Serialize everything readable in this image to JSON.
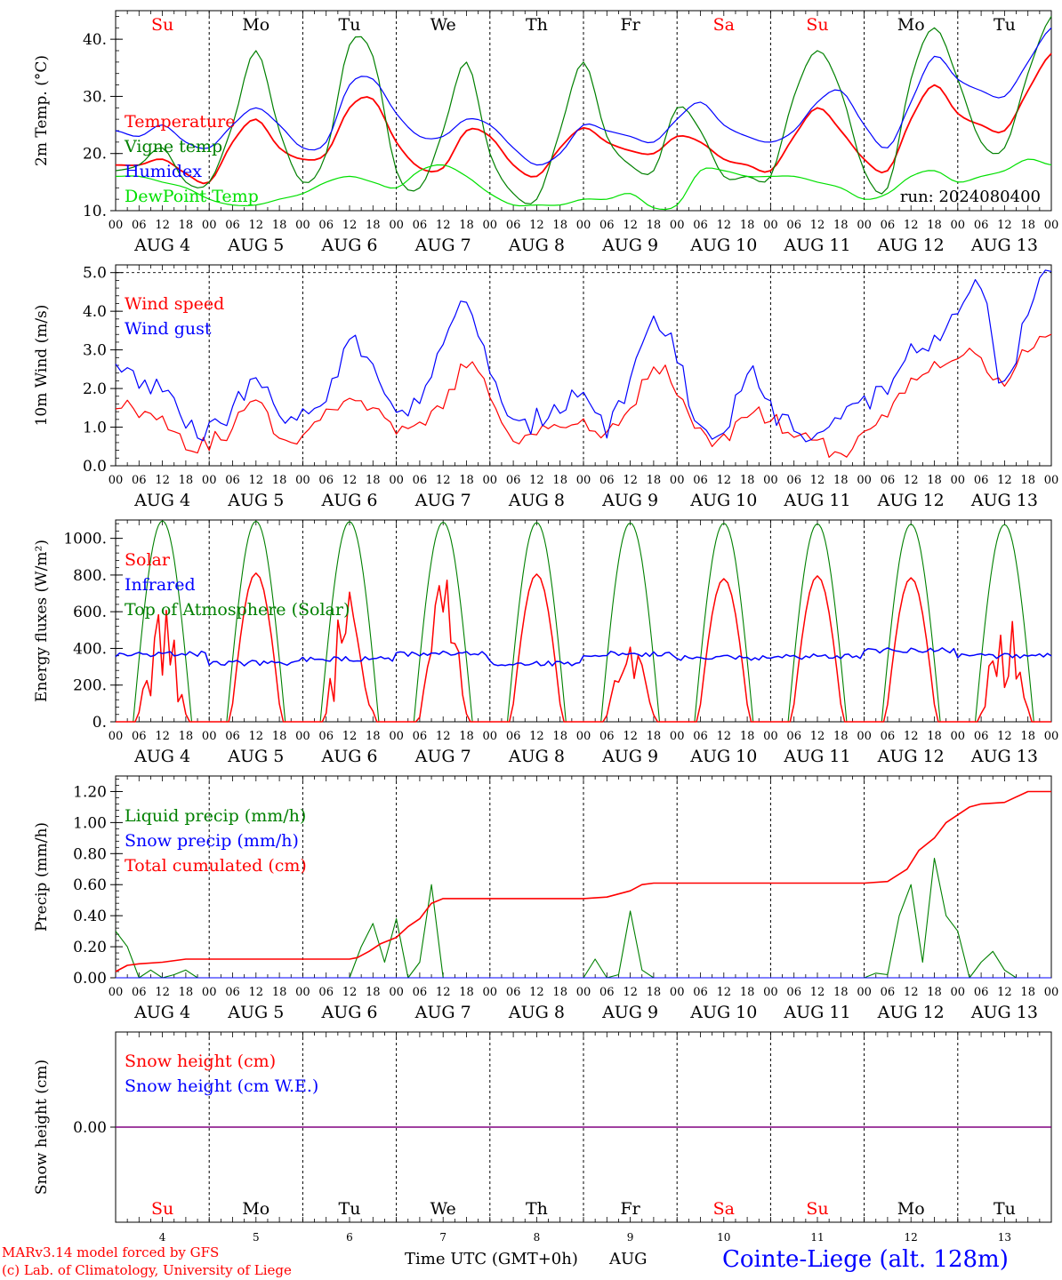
{
  "colors": {
    "red": "#ff0000",
    "green": "#008000",
    "blue": "#0000ff",
    "lightgreen": "#00e000",
    "purple": "#800080",
    "axis": "#000000"
  },
  "days": {
    "weekdays": [
      "Su",
      "Mo",
      "Tu",
      "We",
      "Th",
      "Fr",
      "Sa",
      "Su",
      "Mo",
      "Tu"
    ],
    "weekday_colors": [
      "red",
      "black",
      "black",
      "black",
      "black",
      "black",
      "red",
      "red",
      "black",
      "black"
    ],
    "date_labels": [
      "AUG  4",
      "AUG  5",
      "AUG  6",
      "AUG  7",
      "AUG  8",
      "AUG  9",
      "AUG 10",
      "AUG 11",
      "AUG 12",
      "AUG 13"
    ],
    "hour_ticks": [
      "00",
      "06",
      "12",
      "18"
    ],
    "hour_end": "00",
    "bottom_day_numbers": [
      "4",
      "5",
      "6",
      "7",
      "8",
      "9",
      "10",
      "11",
      "12",
      "13"
    ]
  },
  "chart_data": [
    {
      "id": "temperature",
      "type": "line",
      "ylabel": "2m Temp. (°C)",
      "ylim": [
        10,
        45
      ],
      "yticks": [
        10,
        20,
        30,
        40
      ],
      "ytick_labels": [
        "10.",
        "20.",
        "30.",
        "40."
      ],
      "annotation": "run: 2024080400",
      "x_unit": "hours since AUG 4 00 UTC",
      "series": [
        {
          "name": "Temperature",
          "color": "red",
          "x": [
            0,
            6,
            12,
            18,
            24,
            30,
            36,
            42,
            48,
            54,
            60,
            66,
            72,
            78,
            84,
            90,
            96,
            102,
            108,
            114,
            120,
            126,
            132,
            138,
            144,
            150,
            156,
            162,
            168,
            174,
            180,
            186,
            192,
            198,
            204,
            210,
            216,
            222,
            228,
            234,
            240
          ],
          "values": [
            18,
            18,
            19,
            16.5,
            15,
            22,
            26,
            21,
            19,
            20,
            28,
            29.5,
            22,
            17.5,
            17.5,
            24,
            23,
            18,
            16,
            21,
            24.5,
            22,
            20.5,
            20,
            23,
            22,
            19,
            18,
            17,
            23,
            28,
            24,
            19,
            17,
            26,
            32,
            27,
            25,
            24,
            31,
            37.5
          ]
        },
        {
          "name": "Vigne temp",
          "color": "green",
          "x": [
            0,
            6,
            12,
            18,
            24,
            30,
            36,
            42,
            48,
            54,
            60,
            66,
            72,
            78,
            84,
            90,
            96,
            102,
            108,
            114,
            120,
            126,
            132,
            138,
            144,
            150,
            156,
            162,
            168,
            174,
            180,
            186,
            192,
            198,
            204,
            210,
            216,
            222,
            228,
            234,
            240
          ],
          "values": [
            17,
            18,
            21,
            15,
            15,
            25,
            38,
            24,
            15,
            20,
            39,
            37,
            17,
            14,
            24,
            36,
            20,
            13,
            12,
            24,
            36,
            23,
            18,
            17,
            28,
            24,
            16,
            16,
            16,
            30,
            38,
            31,
            17,
            14,
            33,
            42,
            33,
            22,
            21,
            34,
            44
          ]
        },
        {
          "name": "Humidex",
          "color": "blue",
          "x": [
            0,
            6,
            12,
            18,
            24,
            30,
            36,
            42,
            48,
            54,
            60,
            66,
            72,
            78,
            84,
            90,
            96,
            102,
            108,
            114,
            120,
            126,
            132,
            138,
            144,
            150,
            156,
            162,
            168,
            174,
            180,
            186,
            192,
            198,
            204,
            210,
            216,
            222,
            228,
            234,
            240
          ],
          "values": [
            24,
            23,
            25,
            22,
            21,
            25,
            28,
            25,
            21,
            22,
            32,
            33,
            27,
            23,
            23,
            26,
            25,
            21,
            18,
            20,
            25,
            24,
            23,
            22,
            26,
            29,
            25,
            23,
            22,
            24,
            29,
            31,
            25,
            21,
            29,
            37,
            33,
            31,
            30,
            36,
            42
          ]
        },
        {
          "name": "DewPoint Temp",
          "color": "lightgreen",
          "x": [
            0,
            6,
            12,
            18,
            24,
            30,
            36,
            42,
            48,
            54,
            60,
            66,
            72,
            78,
            84,
            90,
            96,
            102,
            108,
            114,
            120,
            126,
            132,
            138,
            144,
            150,
            156,
            162,
            168,
            174,
            180,
            186,
            192,
            198,
            204,
            210,
            216,
            222,
            228,
            234,
            240
          ],
          "values": [
            16,
            16,
            15,
            14,
            12,
            11,
            11,
            12,
            13,
            15,
            16,
            15,
            14,
            17,
            18,
            16,
            13,
            11,
            11,
            11,
            12,
            12,
            13,
            10.5,
            11,
            17,
            17,
            16,
            16,
            16,
            15,
            14,
            12,
            13,
            16,
            17,
            15,
            16,
            17,
            19,
            18
          ]
        }
      ]
    },
    {
      "id": "wind",
      "type": "line",
      "ylabel": "10m Wind (m/s)",
      "ylim": [
        0,
        5.2
      ],
      "yticks": [
        0,
        1,
        2,
        3,
        4,
        5
      ],
      "ytick_labels": [
        "0.0",
        "1.0",
        "2.0",
        "3.0",
        "4.0",
        "5.0"
      ],
      "series": [
        {
          "name": "Wind speed",
          "color": "red",
          "x": [
            0,
            6,
            12,
            18,
            24,
            30,
            36,
            42,
            48,
            54,
            60,
            66,
            72,
            78,
            84,
            90,
            96,
            102,
            108,
            114,
            120,
            126,
            132,
            138,
            144,
            150,
            156,
            162,
            168,
            174,
            180,
            186,
            192,
            198,
            204,
            210,
            216,
            222,
            228,
            234,
            240
          ],
          "values": [
            1.7,
            1.4,
            1.3,
            0.6,
            0.6,
            1.0,
            1.7,
            0.8,
            0.8,
            1.4,
            1.8,
            1.4,
            0.9,
            1.0,
            1.6,
            2.6,
            1.8,
            0.6,
            0.9,
            1.2,
            1.0,
            0.8,
            1.5,
            2.6,
            2.0,
            0.8,
            0.7,
            1.4,
            1.2,
            0.8,
            0.6,
            0.3,
            1.0,
            1.3,
            2.2,
            2.6,
            2.9,
            2.8,
            2.0,
            3.1,
            3.2
          ]
        },
        {
          "name": "Wind gust",
          "color": "blue",
          "x": [
            0,
            6,
            12,
            18,
            24,
            30,
            36,
            42,
            48,
            54,
            60,
            66,
            72,
            78,
            84,
            90,
            96,
            102,
            108,
            114,
            120,
            126,
            132,
            138,
            144,
            150,
            156,
            162,
            168,
            174,
            180,
            186,
            192,
            198,
            204,
            210,
            216,
            222,
            228,
            234,
            240
          ],
          "values": [
            2.5,
            2.2,
            2.0,
            1.0,
            0.9,
            1.4,
            2.3,
            1.3,
            1.2,
            1.8,
            3.2,
            2.4,
            1.6,
            1.8,
            3.0,
            4.2,
            2.4,
            1.0,
            1.2,
            1.6,
            1.9,
            1.0,
            2.1,
            3.7,
            2.8,
            1.0,
            1.0,
            2.4,
            1.5,
            1.0,
            0.8,
            1.5,
            1.6,
            2.0,
            2.9,
            3.2,
            4.0,
            4.5,
            2.0,
            4.2,
            5.0
          ]
        }
      ]
    },
    {
      "id": "energy",
      "type": "line",
      "ylabel": "Energy fluxes (W/m²)",
      "ylim": [
        0,
        1100
      ],
      "yticks": [
        0,
        200,
        400,
        600,
        800,
        1000
      ],
      "ytick_labels": [
        "0.",
        "200.",
        "400.",
        "600.",
        "800.",
        "1000."
      ],
      "series": [
        {
          "name": "Solar",
          "color": "red",
          "daily_peak": [
            650,
            810,
            760,
            800,
            805,
            420,
            780,
            795,
            785,
            640
          ]
        },
        {
          "name": "Infrared",
          "color": "blue",
          "daily_mean": [
            370,
            320,
            340,
            370,
            320,
            370,
            350,
            355,
            390,
            360
          ]
        },
        {
          "name": "Top of Atmosphere (Solar)",
          "color": "green",
          "daily_peak": [
            1095,
            1093,
            1091,
            1088,
            1086,
            1084,
            1082,
            1079,
            1077,
            1075
          ]
        }
      ]
    },
    {
      "id": "precip",
      "type": "line",
      "ylabel": "Precip (mm/h)",
      "ylim": [
        0,
        1.3
      ],
      "yticks": [
        0,
        0.2,
        0.4,
        0.6,
        0.8,
        1.0,
        1.2
      ],
      "ytick_labels": [
        "0.00",
        "0.20",
        "0.40",
        "0.60",
        "0.80",
        "1.00",
        "1.20"
      ],
      "series": [
        {
          "name": "Liquid precip (mm/h)",
          "color": "green",
          "x": [
            0,
            3,
            6,
            9,
            12,
            15,
            18,
            21,
            24,
            60,
            63,
            66,
            69,
            72,
            75,
            78,
            81,
            84,
            87,
            120,
            123,
            126,
            129,
            132,
            135,
            138,
            192,
            195,
            198,
            201,
            204,
            207,
            210,
            213,
            216,
            219,
            222,
            225,
            228,
            231,
            234,
            237,
            240
          ],
          "values": [
            0.3,
            0.2,
            0,
            0.05,
            0,
            0.02,
            0.05,
            0,
            0,
            0,
            0.2,
            0.35,
            0.1,
            0.38,
            0,
            0.1,
            0.6,
            0,
            0,
            0,
            0.12,
            0,
            0.02,
            0.43,
            0.05,
            0,
            0,
            0.03,
            0.02,
            0.4,
            0.6,
            0.1,
            0.77,
            0.4,
            0.3,
            0,
            0.1,
            0.17,
            0.05,
            0,
            0,
            0,
            0
          ]
        },
        {
          "name": "Snow precip (mm/h)",
          "color": "blue",
          "x": [
            0,
            240
          ],
          "values": [
            0,
            0
          ]
        },
        {
          "name": "Total cumulated (cm)",
          "color": "red",
          "x": [
            0,
            3,
            6,
            12,
            18,
            24,
            36,
            48,
            60,
            62,
            65,
            68,
            72,
            75,
            78,
            81,
            84,
            96,
            108,
            120,
            126,
            132,
            135,
            138,
            150,
            162,
            180,
            192,
            198,
            203,
            206,
            210,
            213,
            216,
            219,
            222,
            228,
            234,
            240
          ],
          "values": [
            0.04,
            0.08,
            0.09,
            0.1,
            0.12,
            0.12,
            0.12,
            0.12,
            0.12,
            0.13,
            0.17,
            0.22,
            0.26,
            0.33,
            0.38,
            0.48,
            0.51,
            0.51,
            0.51,
            0.51,
            0.52,
            0.56,
            0.6,
            0.61,
            0.61,
            0.61,
            0.61,
            0.61,
            0.62,
            0.7,
            0.82,
            0.9,
            1.0,
            1.05,
            1.1,
            1.12,
            1.13,
            1.2,
            1.2
          ]
        }
      ]
    },
    {
      "id": "snow",
      "type": "line",
      "ylabel": "Snow height (cm)",
      "ylim": [
        -1,
        1
      ],
      "yticks": [
        0
      ],
      "ytick_labels": [
        "0.00"
      ],
      "series": [
        {
          "name": "Snow height (cm)",
          "color": "red",
          "x": [
            0,
            240
          ],
          "values": [
            0,
            0
          ]
        },
        {
          "name": "Snow height (cm W.E.)",
          "color": "blue",
          "x": [
            0,
            240
          ],
          "values": [
            0,
            0
          ]
        }
      ]
    }
  ],
  "footer": {
    "x_title": "Time UTC (GMT+0h)",
    "month": "AUG",
    "credit_line1": "MARv3.14 model forced by GFS",
    "credit_line2": "(c) Lab. of Climatology, University of Liege",
    "station": "Cointe-Liege (alt. 128m)"
  }
}
